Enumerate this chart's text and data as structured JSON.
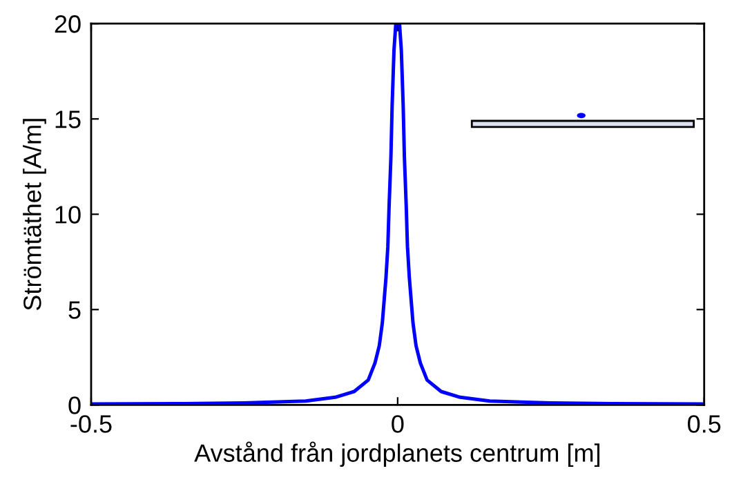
{
  "chart_data": {
    "type": "line",
    "xlabel": "Avstånd från jordplanets centrum [m]",
    "ylabel": "Strömtäthet [A/m]",
    "xlim": [
      -0.5,
      0.5
    ],
    "xticks": [
      -0.5,
      0,
      0.5
    ],
    "ylim": [
      0,
      20
    ],
    "yticks": [
      0,
      5,
      10,
      15,
      20
    ],
    "marker": "none",
    "line_style": "solid",
    "series": [
      {
        "color": "#0000ff",
        "x": [
          -0.5,
          -0.35,
          -0.25,
          -0.15,
          -0.102,
          -0.071,
          -0.048,
          -0.037,
          -0.03,
          -0.025,
          -0.022,
          -0.019,
          -0.016,
          -0.014,
          -0.011,
          -0.009,
          -0.006,
          -0.003,
          0.003,
          0.006,
          0.009,
          0.011,
          0.014,
          0.016,
          0.019,
          0.022,
          0.025,
          0.03,
          0.037,
          0.048,
          0.071,
          0.102,
          0.15,
          0.25,
          0.35,
          0.5
        ],
        "values": [
          0.05,
          0.07,
          0.1,
          0.2,
          0.4,
          0.7,
          1.3,
          2.2,
          3.1,
          4.3,
          5.5,
          6.7,
          8.3,
          10.4,
          13.0,
          15.7,
          18.6,
          20,
          20,
          18.6,
          15.7,
          13.0,
          10.4,
          8.3,
          6.7,
          5.5,
          4.3,
          3.1,
          2.2,
          1.3,
          0.7,
          0.4,
          0.2,
          0.1,
          0.07,
          0.05
        ]
      }
    ]
  }
}
